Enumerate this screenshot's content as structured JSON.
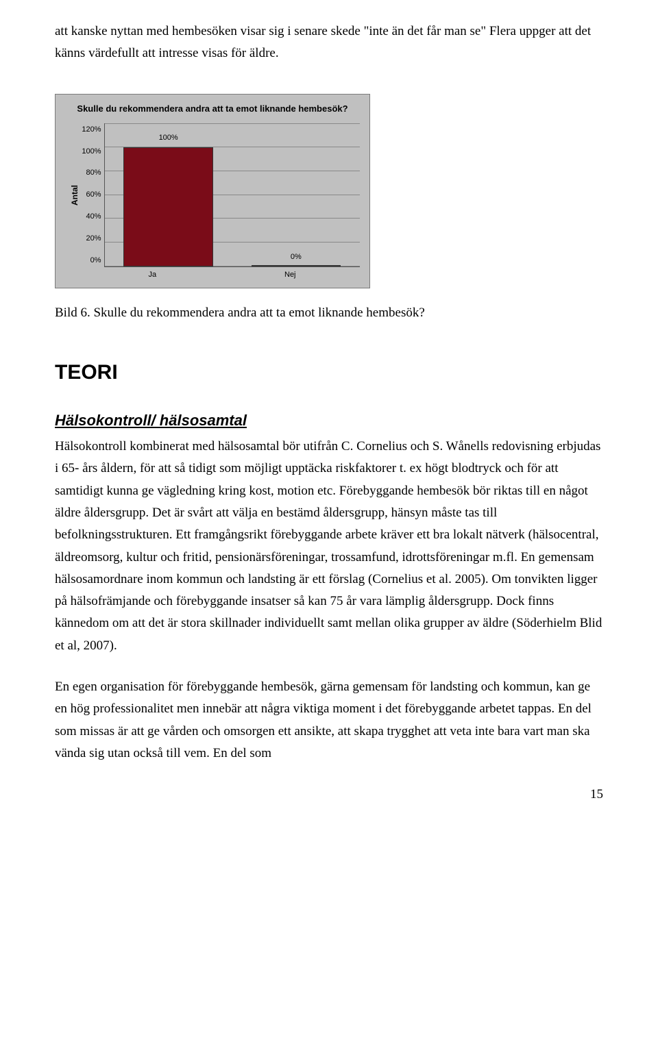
{
  "intro": "att kanske nyttan med hembesöken visar sig i senare skede \"inte än det får man se\" Flera uppger att det känns värdefullt att intresse visas för äldre.",
  "chart": {
    "type": "bar",
    "title": "Skulle du rekommendera andra att ta emot liknande hembesök?",
    "y_axis_label": "Antal",
    "y_ticks": [
      "120%",
      "100%",
      "80%",
      "60%",
      "40%",
      "20%",
      "0%"
    ],
    "ylim_max": 120,
    "categories": [
      "Ja",
      "Nej"
    ],
    "values": [
      100,
      0
    ],
    "value_labels": [
      "100%",
      "0%"
    ],
    "bar_color": "#7a0c18",
    "plot_bg": "#c0c0c0",
    "grid_color": "#888888",
    "panel_border": "#7a7a7a",
    "title_fontsize": 13,
    "tick_fontsize": 11
  },
  "caption": "Bild 6. Skulle du rekommendera andra att ta emot liknande hembesök?",
  "heading_teori": "TEORI",
  "subheading": "Hälsokontroll/ hälsosamtal",
  "para1": "Hälsokontroll kombinerat med hälsosamtal bör utifrån C. Cornelius och S. Wånells redovisning erbjudas i 65- års åldern, för att så tidigt som möjligt upptäcka riskfaktorer t. ex högt blodtryck och för att samtidigt kunna ge vägledning kring kost, motion etc. Förebyggande hembesök bör riktas till en något äldre åldersgrupp. Det är svårt att välja en bestämd åldersgrupp, hänsyn måste tas till befolkningsstrukturen. Ett framgångsrikt förebyggande arbete kräver ett bra lokalt nätverk (hälsocentral, äldreomsorg, kultur och fritid, pensionärsföreningar, trossamfund, idrottsföreningar m.fl. En gemensam hälsosamordnare inom kommun och landsting är ett förslag (Cornelius et al. 2005). Om tonvikten ligger på hälsofrämjande och förebyggande insatser så kan 75 år vara lämplig åldersgrupp. Dock finns kännedom om att det är stora skillnader individuellt samt mellan olika grupper av äldre (Söderhielm Blid et al, 2007).",
  "para2": "En egen organisation för förebyggande hembesök, gärna gemensam för landsting och kommun, kan ge en hög professionalitet men innebär att några viktiga moment i det förebyggande arbetet tappas. En del som missas är att ge vården och omsorgen ett ansikte, att skapa trygghet att veta inte bara vart man ska vända sig utan också till vem. En del som",
  "page_number": "15"
}
